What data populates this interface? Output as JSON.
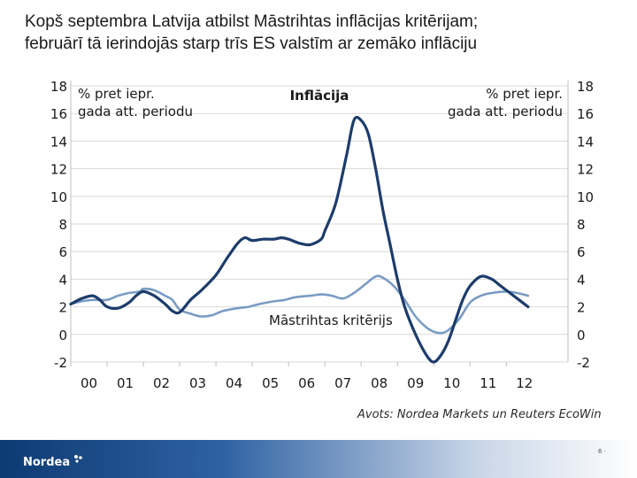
{
  "slide": {
    "title_line1": "Kopš septembra Latvija atbilst Māstrihtas inflācijas kritērijam;",
    "title_line2": "februārī tā ierindojās starp trīs ES valstīm ar zemāko inflāciju",
    "source": "Avots: Nordea Markets un Reuters EcoWin",
    "logo_text": "Nordea",
    "page_number": "6 ·"
  },
  "colors": {
    "inflation": "#1c3c6b",
    "criterion": "#7a9cc3",
    "gridline": "#d9d9d9",
    "footer": "#0d3a73"
  },
  "chart_data": {
    "type": "line",
    "title": "Inflācija",
    "ylabel_left": [
      "% pret iepr.",
      "gada att. periodu"
    ],
    "ylabel_right": [
      "% pret iepr.",
      "gada att. periodu"
    ],
    "ylim": [
      -2,
      18
    ],
    "yticks": [
      -2,
      0,
      2,
      4,
      6,
      8,
      10,
      12,
      14,
      16,
      18
    ],
    "xlim": [
      2000,
      2013.7
    ],
    "xtick_labels": [
      "00",
      "01",
      "02",
      "03",
      "04",
      "05",
      "06",
      "07",
      "08",
      "09",
      "10",
      "11",
      "12"
    ],
    "annotation": "Māstrihtas kritērijs",
    "grid": true,
    "series": [
      {
        "name": "Inflācija",
        "x": [
          2000,
          2000.3,
          2000.6,
          2000.8,
          2001,
          2001.3,
          2001.6,
          2001.8,
          2002,
          2002.3,
          2002.6,
          2002.8,
          2003,
          2003.3,
          2003.6,
          2004,
          2004.3,
          2004.6,
          2004.8,
          2005,
          2005.3,
          2005.6,
          2005.8,
          2006,
          2006.3,
          2006.6,
          2006.9,
          2007,
          2007.3,
          2007.6,
          2007.8,
          2008,
          2008.2,
          2008.4,
          2008.6,
          2008.8,
          2009,
          2009.2,
          2009.5,
          2009.8,
          2010,
          2010.2,
          2010.4,
          2010.6,
          2010.8,
          2011,
          2011.3,
          2011.6,
          2011.8,
          2012,
          2012.3,
          2012.6
        ],
        "values": [
          2.2,
          2.6,
          2.8,
          2.5,
          2.0,
          1.9,
          2.3,
          2.8,
          3.1,
          2.8,
          2.2,
          1.7,
          1.6,
          2.5,
          3.2,
          4.3,
          5.5,
          6.6,
          7.0,
          6.8,
          6.9,
          6.9,
          7.0,
          6.9,
          6.6,
          6.5,
          6.9,
          7.5,
          9.5,
          13.0,
          15.5,
          15.5,
          14.5,
          12.0,
          9.0,
          6.5,
          4.0,
          2.0,
          0.0,
          -1.5,
          -2.0,
          -1.5,
          -0.5,
          1.0,
          2.5,
          3.5,
          4.2,
          4.0,
          3.6,
          3.2,
          2.6,
          2.0
        ]
      },
      {
        "name": "Māstrihtas kritērijs",
        "x": [
          2000,
          2000.3,
          2000.6,
          2001,
          2001.3,
          2001.6,
          2001.9,
          2002,
          2002.3,
          2002.6,
          2002.8,
          2003,
          2003.3,
          2003.6,
          2003.9,
          2004.2,
          2004.6,
          2004.9,
          2005.2,
          2005.6,
          2005.9,
          2006.2,
          2006.6,
          2006.9,
          2007.2,
          2007.5,
          2007.8,
          2008.1,
          2008.4,
          2008.6,
          2008.9,
          2009.2,
          2009.5,
          2009.8,
          2010,
          2010.2,
          2010.4,
          2010.7,
          2011,
          2011.3,
          2011.6,
          2012,
          2012.3,
          2012.6
        ],
        "values": [
          2.2,
          2.4,
          2.5,
          2.5,
          2.8,
          3.0,
          3.1,
          3.3,
          3.2,
          2.8,
          2.5,
          1.8,
          1.5,
          1.3,
          1.4,
          1.7,
          1.9,
          2.0,
          2.2,
          2.4,
          2.5,
          2.7,
          2.8,
          2.9,
          2.8,
          2.6,
          3.0,
          3.6,
          4.2,
          4.1,
          3.5,
          2.5,
          1.3,
          0.5,
          0.2,
          0.1,
          0.3,
          1.1,
          2.3,
          2.8,
          3.0,
          3.1,
          3.0,
          2.8
        ]
      }
    ]
  }
}
